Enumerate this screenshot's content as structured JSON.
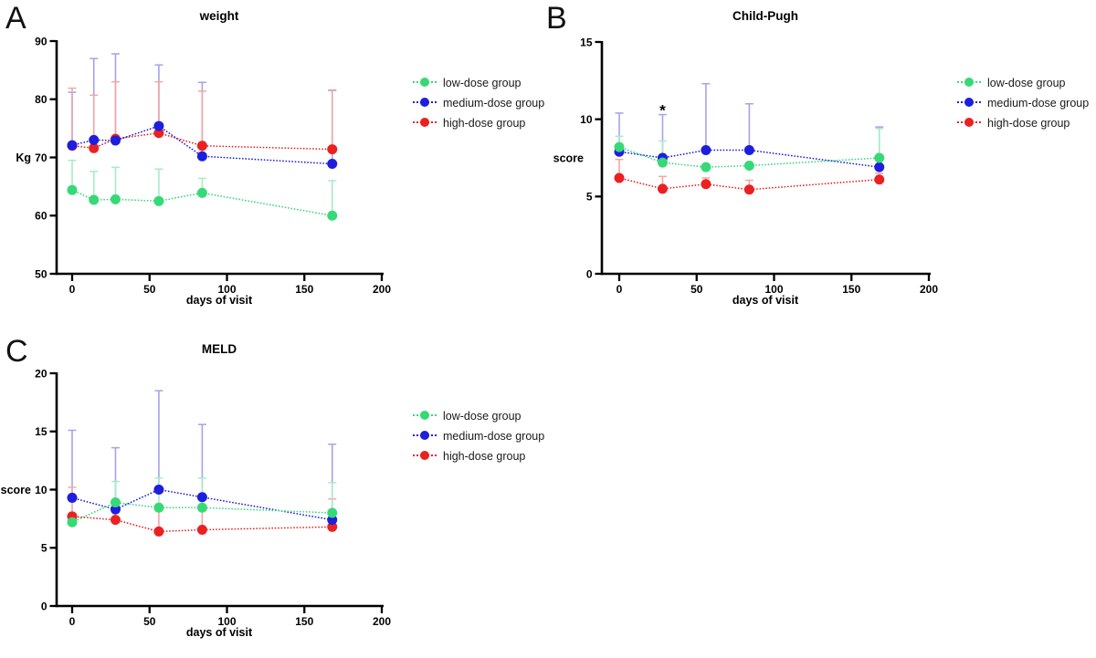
{
  "figure": {
    "background": "#ffffff"
  },
  "colors": {
    "low": "#37D977",
    "medium": "#1E1EDD",
    "high": "#EB2121",
    "low_err": "#A6ECC6",
    "medium_err": "#A3A3ED",
    "high_err": "#F3A6A6",
    "axis": "#000000",
    "annotation": "#1E7E1E"
  },
  "legend": {
    "items": [
      {
        "key": "low",
        "label": "low-dose group"
      },
      {
        "key": "medium",
        "label": "medium-dose group"
      },
      {
        "key": "high",
        "label": "high-dose group"
      }
    ]
  },
  "chart_data": [
    {
      "panel": "A",
      "type": "line",
      "title": "weight",
      "xlabel": "days of visit",
      "ylabel": "Kg",
      "ylabel_at": 70,
      "xlim": [
        0,
        200
      ],
      "ylim": [
        50,
        90
      ],
      "xticks": [
        0,
        50,
        100,
        150,
        200
      ],
      "yticks": [
        50,
        60,
        70,
        80,
        90
      ],
      "grid": false,
      "legend_position": "right",
      "x": [
        0,
        14,
        28,
        56,
        84,
        168
      ],
      "series": [
        {
          "name": "low-dose group",
          "key": "low",
          "values": [
            64.4,
            62.7,
            62.8,
            62.5,
            63.9,
            60.0
          ],
          "error_top": [
            69.5,
            67.6,
            68.3,
            68.0,
            66.4,
            66.0
          ]
        },
        {
          "name": "medium-dose group",
          "key": "medium",
          "values": [
            72.1,
            73.0,
            72.9,
            75.4,
            70.2,
            68.9
          ],
          "error_top": [
            81.2,
            87.0,
            87.8,
            85.9,
            82.9,
            81.5
          ]
        },
        {
          "name": "high-dose group",
          "key": "high",
          "values": [
            72.0,
            71.6,
            73.2,
            74.2,
            72.0,
            71.4
          ],
          "error_top": [
            81.9,
            80.7,
            83.0,
            83.0,
            81.4,
            81.6
          ]
        }
      ],
      "annotations": []
    },
    {
      "panel": "B",
      "type": "line",
      "title": "Child-Pugh",
      "xlabel": "days of visit",
      "ylabel": "score",
      "ylabel_at": 7.5,
      "xlim": [
        0,
        200
      ],
      "ylim": [
        0,
        15
      ],
      "xticks": [
        0,
        50,
        100,
        150,
        200
      ],
      "yticks": [
        0,
        5,
        10,
        15
      ],
      "grid": false,
      "legend_position": "right",
      "x": [
        0,
        28,
        56,
        84,
        168
      ],
      "series": [
        {
          "name": "low-dose group",
          "key": "low",
          "values": [
            8.2,
            7.2,
            6.9,
            7.0,
            7.5
          ],
          "error_top": [
            8.9,
            8.6,
            null,
            null,
            9.4
          ]
        },
        {
          "name": "medium-dose group",
          "key": "medium",
          "values": [
            7.9,
            7.5,
            8.0,
            8.0,
            6.9
          ],
          "error_top": [
            10.4,
            10.3,
            12.3,
            11.0,
            9.5
          ]
        },
        {
          "name": "high-dose group",
          "key": "high",
          "values": [
            6.2,
            5.5,
            5.8,
            5.45,
            6.1
          ],
          "error_top": [
            7.4,
            6.3,
            6.2,
            6.05,
            6.5
          ]
        }
      ],
      "annotations": [
        {
          "text": "*",
          "x": 28,
          "y": 10.6,
          "color_key": "annotation"
        }
      ]
    },
    {
      "panel": "C",
      "type": "line",
      "title": "MELD",
      "xlabel": "days of visit",
      "ylabel": "score",
      "ylabel_at": 10,
      "xlim": [
        0,
        200
      ],
      "ylim": [
        0,
        20
      ],
      "xticks": [
        0,
        50,
        100,
        150,
        200
      ],
      "yticks": [
        0,
        5,
        10,
        15,
        20
      ],
      "grid": false,
      "legend_position": "right",
      "x": [
        0,
        28,
        56,
        84,
        168
      ],
      "series": [
        {
          "name": "low-dose group",
          "key": "low",
          "values": [
            7.2,
            8.9,
            8.45,
            8.45,
            8.0
          ],
          "error_top": [
            null,
            10.7,
            11.0,
            11.0,
            10.6
          ]
        },
        {
          "name": "medium-dose group",
          "key": "medium",
          "values": [
            9.3,
            8.3,
            10.0,
            9.35,
            7.4
          ],
          "error_top": [
            15.1,
            13.6,
            18.5,
            15.6,
            13.9
          ]
        },
        {
          "name": "high-dose group",
          "key": "high",
          "values": [
            7.7,
            7.4,
            6.4,
            6.55,
            6.8
          ],
          "error_top": [
            10.2,
            8.6,
            8.4,
            8.4,
            9.2
          ]
        }
      ],
      "annotations": []
    }
  ]
}
